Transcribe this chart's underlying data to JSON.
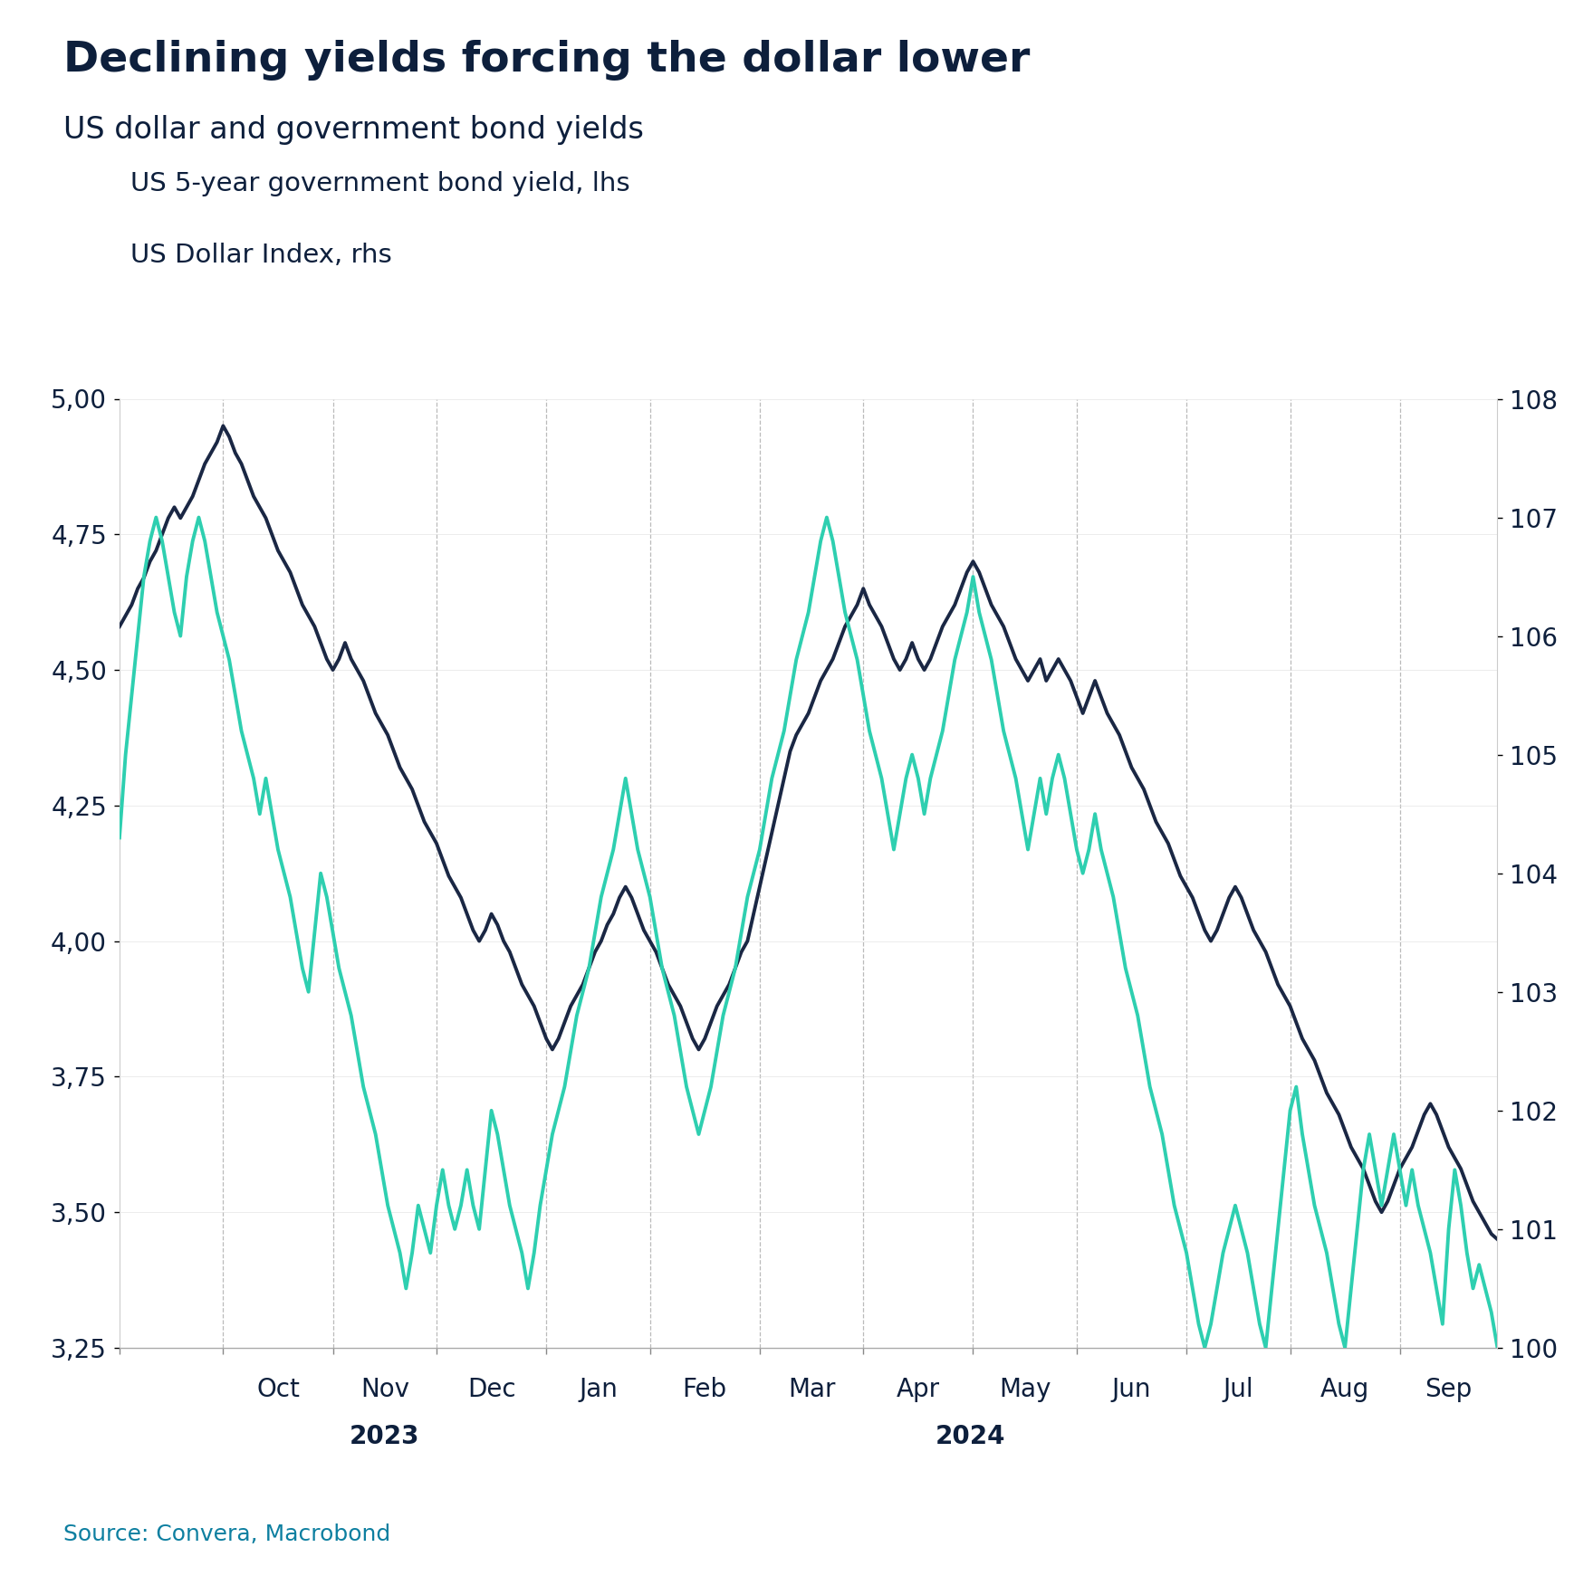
{
  "title": "Declining yields forcing the dollar lower",
  "subtitle": "US dollar and government bond yields",
  "source": "Source: Convera, Macrobond",
  "legend1": "US 5-year government bond yield, lhs",
  "legend2": "US Dollar Index, rhs",
  "title_color": "#0d1f3c",
  "subtitle_color": "#0d1f3c",
  "source_color": "#0d7fa0",
  "bond_color": "#1a2744",
  "dollar_color": "#2ecfb0",
  "ylim_left": [
    3.25,
    5.0
  ],
  "ylim_right": [
    100,
    108
  ],
  "yticks_left": [
    3.25,
    3.5,
    3.75,
    4.0,
    4.25,
    4.5,
    4.75,
    5.0
  ],
  "yticks_right": [
    100,
    101,
    102,
    103,
    104,
    105,
    106,
    107,
    108
  ],
  "background_color": "#ffffff",
  "grid_color": "#aaaaaa",
  "bond_yield": [
    4.58,
    4.6,
    4.62,
    4.65,
    4.67,
    4.7,
    4.72,
    4.75,
    4.78,
    4.8,
    4.78,
    4.8,
    4.82,
    4.85,
    4.88,
    4.9,
    4.92,
    4.95,
    4.93,
    4.9,
    4.88,
    4.85,
    4.82,
    4.8,
    4.78,
    4.75,
    4.72,
    4.7,
    4.68,
    4.65,
    4.62,
    4.6,
    4.58,
    4.55,
    4.52,
    4.5,
    4.52,
    4.55,
    4.52,
    4.5,
    4.48,
    4.45,
    4.42,
    4.4,
    4.38,
    4.35,
    4.32,
    4.3,
    4.28,
    4.25,
    4.22,
    4.2,
    4.18,
    4.15,
    4.12,
    4.1,
    4.08,
    4.05,
    4.02,
    4.0,
    4.02,
    4.05,
    4.03,
    4.0,
    3.98,
    3.95,
    3.92,
    3.9,
    3.88,
    3.85,
    3.82,
    3.8,
    3.82,
    3.85,
    3.88,
    3.9,
    3.92,
    3.95,
    3.98,
    4.0,
    4.03,
    4.05,
    4.08,
    4.1,
    4.08,
    4.05,
    4.02,
    4.0,
    3.98,
    3.95,
    3.92,
    3.9,
    3.88,
    3.85,
    3.82,
    3.8,
    3.82,
    3.85,
    3.88,
    3.9,
    3.92,
    3.95,
    3.98,
    4.0,
    4.05,
    4.1,
    4.15,
    4.2,
    4.25,
    4.3,
    4.35,
    4.38,
    4.4,
    4.42,
    4.45,
    4.48,
    4.5,
    4.52,
    4.55,
    4.58,
    4.6,
    4.62,
    4.65,
    4.62,
    4.6,
    4.58,
    4.55,
    4.52,
    4.5,
    4.52,
    4.55,
    4.52,
    4.5,
    4.52,
    4.55,
    4.58,
    4.6,
    4.62,
    4.65,
    4.68,
    4.7,
    4.68,
    4.65,
    4.62,
    4.6,
    4.58,
    4.55,
    4.52,
    4.5,
    4.48,
    4.5,
    4.52,
    4.48,
    4.5,
    4.52,
    4.5,
    4.48,
    4.45,
    4.42,
    4.45,
    4.48,
    4.45,
    4.42,
    4.4,
    4.38,
    4.35,
    4.32,
    4.3,
    4.28,
    4.25,
    4.22,
    4.2,
    4.18,
    4.15,
    4.12,
    4.1,
    4.08,
    4.05,
    4.02,
    4.0,
    4.02,
    4.05,
    4.08,
    4.1,
    4.08,
    4.05,
    4.02,
    4.0,
    3.98,
    3.95,
    3.92,
    3.9,
    3.88,
    3.85,
    3.82,
    3.8,
    3.78,
    3.75,
    3.72,
    3.7,
    3.68,
    3.65,
    3.62,
    3.6,
    3.58,
    3.55,
    3.52,
    3.5,
    3.52,
    3.55,
    3.58,
    3.6,
    3.62,
    3.65,
    3.68,
    3.7,
    3.68,
    3.65,
    3.62,
    3.6,
    3.58,
    3.55,
    3.52,
    3.5,
    3.48,
    3.46,
    3.45
  ],
  "dollar_index": [
    104.3,
    105.0,
    105.5,
    106.0,
    106.5,
    106.8,
    107.0,
    106.8,
    106.5,
    106.2,
    106.0,
    106.5,
    106.8,
    107.0,
    106.8,
    106.5,
    106.2,
    106.0,
    105.8,
    105.5,
    105.2,
    105.0,
    104.8,
    104.5,
    104.8,
    104.5,
    104.2,
    104.0,
    103.8,
    103.5,
    103.2,
    103.0,
    103.5,
    104.0,
    103.8,
    103.5,
    103.2,
    103.0,
    102.8,
    102.5,
    102.2,
    102.0,
    101.8,
    101.5,
    101.2,
    101.0,
    100.8,
    100.5,
    100.8,
    101.2,
    101.0,
    100.8,
    101.2,
    101.5,
    101.2,
    101.0,
    101.2,
    101.5,
    101.2,
    101.0,
    101.5,
    102.0,
    101.8,
    101.5,
    101.2,
    101.0,
    100.8,
    100.5,
    100.8,
    101.2,
    101.5,
    101.8,
    102.0,
    102.2,
    102.5,
    102.8,
    103.0,
    103.2,
    103.5,
    103.8,
    104.0,
    104.2,
    104.5,
    104.8,
    104.5,
    104.2,
    104.0,
    103.8,
    103.5,
    103.2,
    103.0,
    102.8,
    102.5,
    102.2,
    102.0,
    101.8,
    102.0,
    102.2,
    102.5,
    102.8,
    103.0,
    103.2,
    103.5,
    103.8,
    104.0,
    104.2,
    104.5,
    104.8,
    105.0,
    105.2,
    105.5,
    105.8,
    106.0,
    106.2,
    106.5,
    106.8,
    107.0,
    106.8,
    106.5,
    106.2,
    106.0,
    105.8,
    105.5,
    105.2,
    105.0,
    104.8,
    104.5,
    104.2,
    104.5,
    104.8,
    105.0,
    104.8,
    104.5,
    104.8,
    105.0,
    105.2,
    105.5,
    105.8,
    106.0,
    106.2,
    106.5,
    106.2,
    106.0,
    105.8,
    105.5,
    105.2,
    105.0,
    104.8,
    104.5,
    104.2,
    104.5,
    104.8,
    104.5,
    104.8,
    105.0,
    104.8,
    104.5,
    104.2,
    104.0,
    104.2,
    104.5,
    104.2,
    104.0,
    103.8,
    103.5,
    103.2,
    103.0,
    102.8,
    102.5,
    102.2,
    102.0,
    101.8,
    101.5,
    101.2,
    101.0,
    100.8,
    100.5,
    100.2,
    100.0,
    100.2,
    100.5,
    100.8,
    101.0,
    101.2,
    101.0,
    100.8,
    100.5,
    100.2,
    100.0,
    100.5,
    101.0,
    101.5,
    102.0,
    102.2,
    101.8,
    101.5,
    101.2,
    101.0,
    100.8,
    100.5,
    100.2,
    100.0,
    100.5,
    101.0,
    101.5,
    101.8,
    101.5,
    101.2,
    101.5,
    101.8,
    101.5,
    101.2,
    101.5,
    101.2,
    101.0,
    100.8,
    100.5,
    100.2,
    101.0,
    101.5,
    101.2,
    100.8,
    100.5,
    100.7,
    100.5,
    100.3,
    100.0
  ]
}
